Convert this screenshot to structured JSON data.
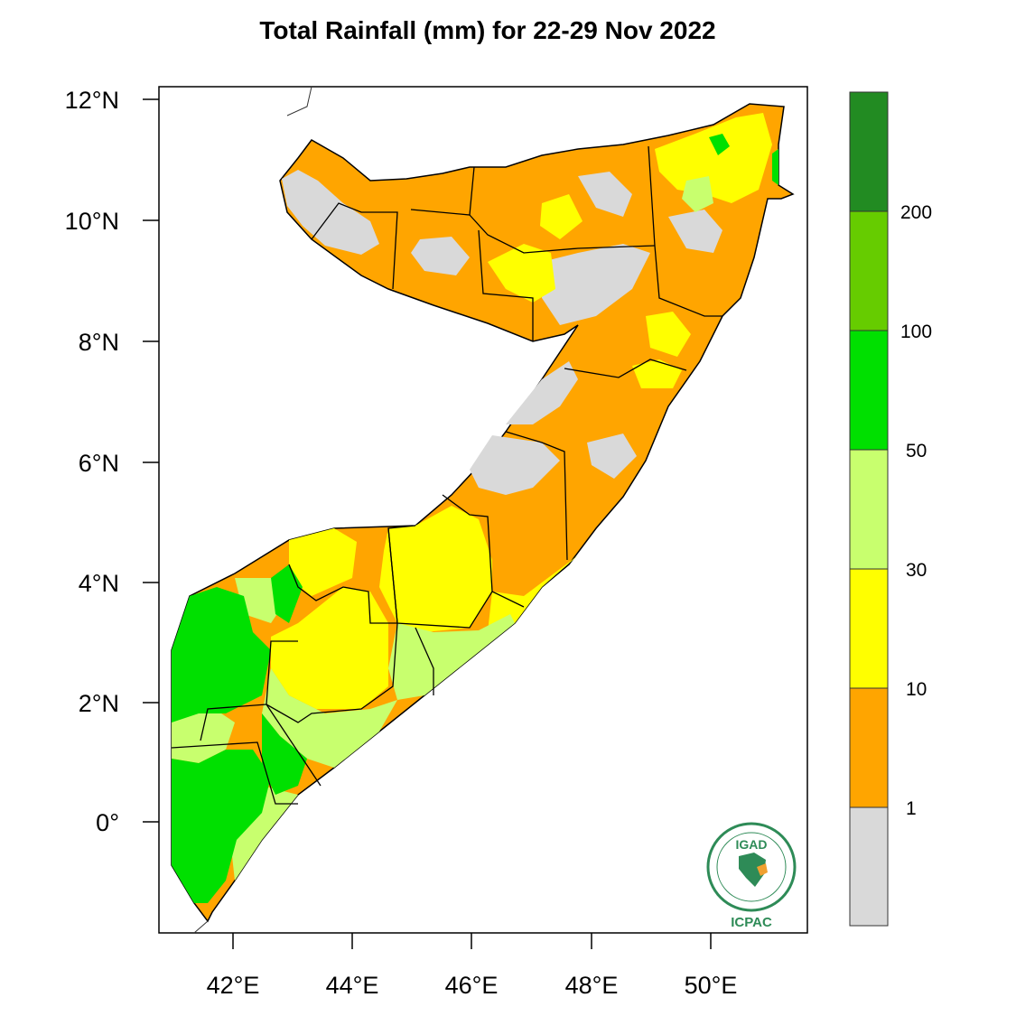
{
  "title": "Total Rainfall (mm) for 22-29 Nov 2022",
  "axes": {
    "lat_labels": [
      "12°N",
      "10°N",
      "8°N",
      "6°N",
      "4°N",
      "2°N",
      "0°"
    ],
    "lon_labels": [
      "42°E",
      "44°E",
      "46°E",
      "48°E",
      "50°E"
    ]
  },
  "legend": {
    "classes": [
      {
        "range": "<1",
        "color": "#d9d9d9"
      },
      {
        "range": "1-10",
        "color": "#ffa500"
      },
      {
        "range": "10-30",
        "color": "#ffff00"
      },
      {
        "range": "30-50",
        "color": "#c8ff6e"
      },
      {
        "range": "50-100",
        "color": "#00e000"
      },
      {
        "range": "100-200",
        "color": "#66cc00"
      },
      {
        "range": ">200",
        "color": "#228b22"
      }
    ],
    "tick_labels": [
      "1",
      "10",
      "30",
      "50",
      "100",
      "200"
    ]
  },
  "logo": {
    "org_top": "IGAD",
    "org_bottom": "ICPAC"
  }
}
